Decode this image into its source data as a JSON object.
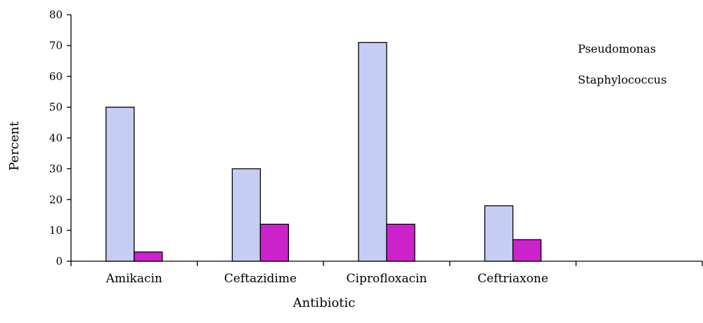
{
  "chart_data": {
    "type": "bar",
    "title": "",
    "xlabel": "Antibiotic",
    "ylabel": "Percent",
    "ylim": [
      0,
      80
    ],
    "yticks": [
      0,
      10,
      20,
      30,
      40,
      50,
      60,
      70,
      80
    ],
    "categories": [
      "Amikacin",
      "Ceftazidime",
      "Ciprofloxacin",
      "Ceftriaxone",
      ""
    ],
    "series": [
      {
        "name": "Pseudomonas",
        "color": "#c5cdf5",
        "values": [
          50,
          30,
          71,
          18,
          null
        ]
      },
      {
        "name": "Staphylococcus",
        "color": "#cc22cc",
        "values": [
          3,
          12,
          12,
          7,
          null
        ]
      }
    ],
    "grid": false,
    "legend_position": "top-right"
  }
}
